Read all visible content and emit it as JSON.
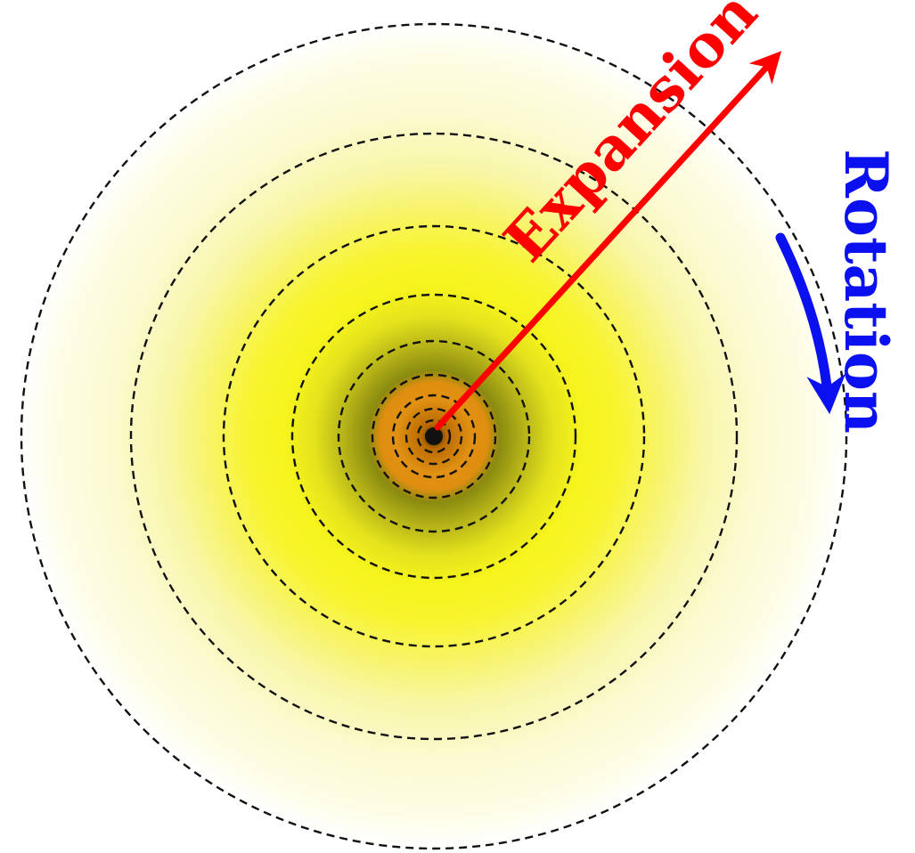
{
  "labels": {
    "expansion": "Expansion",
    "rotation": "Rotation"
  },
  "colors": {
    "expansion": "#ff0000",
    "rotation": "#0a10ee",
    "ring": "#111111",
    "core": "#111111"
  }
}
